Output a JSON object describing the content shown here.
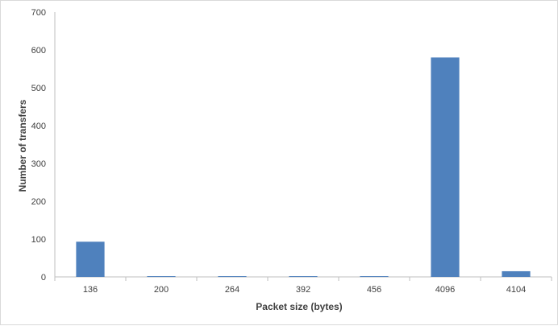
{
  "chart_data": {
    "type": "bar",
    "categories": [
      "136",
      "200",
      "264",
      "392",
      "456",
      "4096",
      "4104"
    ],
    "values": [
      93,
      2,
      2,
      2,
      2,
      580,
      15
    ],
    "title": "",
    "xlabel": "Packet size (bytes)",
    "ylabel": "Number of transfers",
    "ylim": [
      0,
      700
    ],
    "yticks": [
      0,
      100,
      200,
      300,
      400,
      500,
      600,
      700
    ],
    "grid": false,
    "legend": "none",
    "bar_color": "#4f81bd"
  }
}
